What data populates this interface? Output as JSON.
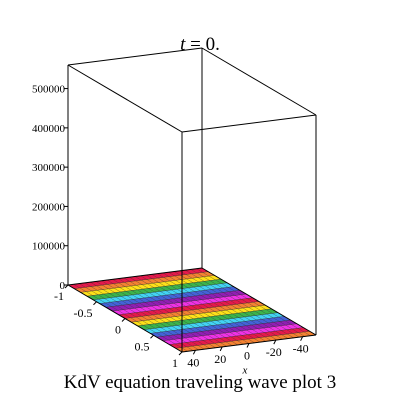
{
  "title": {
    "variable": "t",
    "relation": " = 0."
  },
  "caption": "KdV equation  traveling wave plot 3",
  "chart_data": {
    "type": "surface3d",
    "title": "t = 0.",
    "caption": "KdV equation  traveling wave plot 3",
    "axes": {
      "x": {
        "label": "x",
        "range": [
          -50,
          50
        ],
        "ticks": [
          40,
          20,
          0,
          -20,
          -40
        ],
        "tick_labels": [
          "40",
          "20",
          "0",
          "-20",
          "-40"
        ]
      },
      "y": {
        "label": "",
        "range": [
          -1,
          1
        ],
        "ticks": [
          -1,
          -0.5,
          0,
          0.5,
          1
        ],
        "tick_labels": [
          "-1",
          "-0.5",
          "0",
          "0.5",
          "1"
        ]
      },
      "z": {
        "label": "",
        "range": [
          0,
          560000
        ],
        "ticks": [
          0,
          100000,
          200000,
          300000,
          400000,
          500000
        ],
        "tick_labels": [
          "0",
          "100000",
          "200000",
          "300000",
          "400000",
          "500000"
        ]
      }
    },
    "surface": {
      "description_values": "near-zero surface height across the whole domain",
      "stripe_count": 18,
      "colormap": [
        "#e6194b",
        "#f58231",
        "#ffe119",
        "#3cb44b",
        "#42d4f4",
        "#4363d8",
        "#911eb4",
        "#f032e6"
      ]
    },
    "bounding_box": true,
    "grid": false
  }
}
